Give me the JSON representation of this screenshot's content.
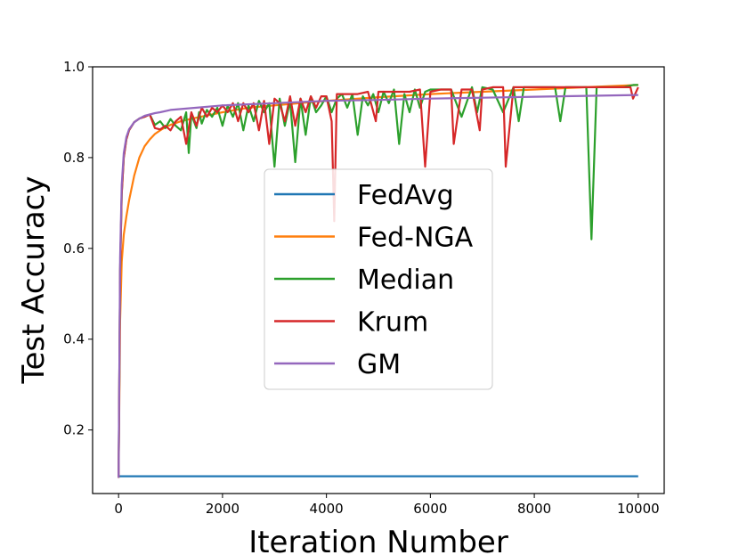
{
  "chart_data": {
    "type": "line",
    "title": "",
    "xlabel": "Iteration Number",
    "ylabel": "Test Accuracy",
    "xlim": [
      -500,
      10500
    ],
    "ylim": [
      0.06,
      1.0
    ],
    "xticks": [
      0,
      2000,
      4000,
      6000,
      8000,
      10000
    ],
    "yticks": [
      0.2,
      0.4,
      0.6,
      0.8,
      1.0
    ],
    "xtick_labels": [
      "0",
      "2000",
      "4000",
      "6000",
      "8000",
      "10000"
    ],
    "ytick_labels": [
      "0.2",
      "0.4",
      "0.6",
      "0.8",
      "1.0"
    ],
    "grid": false,
    "legend_position": "center",
    "series": [
      {
        "name": "FedAvg",
        "color": "#1f77b4",
        "x": [
          0,
          2000,
          4000,
          6000,
          8000,
          10000
        ],
        "y": [
          0.098,
          0.098,
          0.098,
          0.098,
          0.098,
          0.098
        ]
      },
      {
        "name": "Fed-NGA",
        "color": "#ff7f0e",
        "x": [
          0,
          30,
          60,
          100,
          150,
          200,
          300,
          400,
          500,
          600,
          700,
          800,
          900,
          1000,
          1200,
          1500,
          2000,
          2500,
          3000,
          4000,
          5000,
          6000,
          7000,
          8000,
          9000,
          10000
        ],
        "y": [
          0.095,
          0.44,
          0.57,
          0.63,
          0.67,
          0.705,
          0.76,
          0.8,
          0.825,
          0.84,
          0.852,
          0.86,
          0.867,
          0.872,
          0.88,
          0.888,
          0.9,
          0.91,
          0.915,
          0.925,
          0.933,
          0.94,
          0.945,
          0.95,
          0.955,
          0.96
        ]
      },
      {
        "name": "Median",
        "color": "#2ca02c",
        "x": [
          0,
          30,
          60,
          100,
          150,
          200,
          300,
          400,
          500,
          600,
          700,
          800,
          900,
          1000,
          1100,
          1200,
          1300,
          1350,
          1400,
          1500,
          1550,
          1600,
          1700,
          1800,
          1900,
          2000,
          2100,
          2200,
          2300,
          2400,
          2500,
          2600,
          2700,
          2800,
          2900,
          3000,
          3100,
          3200,
          3300,
          3400,
          3500,
          3600,
          3700,
          3800,
          3900,
          4000,
          4100,
          4200,
          4300,
          4400,
          4500,
          4600,
          4700,
          4800,
          4900,
          5000,
          5100,
          5200,
          5300,
          5400,
          5500,
          5600,
          5700,
          5800,
          5900,
          6000,
          6200,
          6400,
          6600,
          6800,
          6900,
          7000,
          7200,
          7400,
          7600,
          7700,
          7800,
          8000,
          8200,
          8400,
          8500,
          8600,
          8800,
          9000,
          9100,
          9200,
          9300,
          9500,
          9700,
          9900,
          10000
        ],
        "y": [
          0.095,
          0.55,
          0.72,
          0.8,
          0.84,
          0.86,
          0.878,
          0.886,
          0.89,
          0.895,
          0.872,
          0.88,
          0.865,
          0.885,
          0.87,
          0.86,
          0.9,
          0.81,
          0.895,
          0.865,
          0.9,
          0.875,
          0.905,
          0.89,
          0.91,
          0.87,
          0.915,
          0.89,
          0.92,
          0.86,
          0.915,
          0.88,
          0.925,
          0.9,
          0.92,
          0.78,
          0.93,
          0.87,
          0.925,
          0.79,
          0.93,
          0.85,
          0.935,
          0.9,
          0.915,
          0.935,
          0.9,
          0.93,
          0.94,
          0.91,
          0.94,
          0.85,
          0.935,
          0.915,
          0.94,
          0.9,
          0.945,
          0.92,
          0.95,
          0.83,
          0.94,
          0.9,
          0.95,
          0.91,
          0.945,
          0.95,
          0.95,
          0.95,
          0.89,
          0.955,
          0.9,
          0.955,
          0.95,
          0.9,
          0.955,
          0.88,
          0.955,
          0.955,
          0.955,
          0.955,
          0.88,
          0.955,
          0.955,
          0.955,
          0.62,
          0.955,
          0.955,
          0.955,
          0.955,
          0.96,
          0.96
        ]
      },
      {
        "name": "Krum",
        "color": "#d62728",
        "x": [
          0,
          30,
          60,
          100,
          150,
          200,
          300,
          400,
          500,
          600,
          700,
          800,
          900,
          1000,
          1100,
          1200,
          1300,
          1400,
          1500,
          1600,
          1700,
          1800,
          1900,
          2000,
          2100,
          2200,
          2300,
          2400,
          2500,
          2600,
          2700,
          2800,
          2900,
          3000,
          3100,
          3200,
          3300,
          3400,
          3500,
          3600,
          3700,
          3800,
          3900,
          4000,
          4100,
          4150,
          4200,
          4400,
          4600,
          4800,
          4950,
          5000,
          5200,
          5400,
          5600,
          5800,
          5900,
          6000,
          6200,
          6400,
          6450,
          6600,
          6800,
          6950,
          7000,
          7200,
          7400,
          7450,
          7600,
          7800,
          8000,
          8500,
          9000,
          9500,
          9850,
          9900,
          10000
        ],
        "y": [
          0.095,
          0.55,
          0.72,
          0.8,
          0.84,
          0.86,
          0.878,
          0.886,
          0.89,
          0.895,
          0.865,
          0.862,
          0.87,
          0.86,
          0.88,
          0.89,
          0.83,
          0.9,
          0.87,
          0.91,
          0.89,
          0.91,
          0.9,
          0.915,
          0.9,
          0.92,
          0.88,
          0.92,
          0.9,
          0.92,
          0.86,
          0.925,
          0.83,
          0.93,
          0.92,
          0.88,
          0.935,
          0.87,
          0.93,
          0.9,
          0.935,
          0.91,
          0.935,
          0.935,
          0.88,
          0.66,
          0.94,
          0.94,
          0.94,
          0.945,
          0.88,
          0.945,
          0.945,
          0.945,
          0.945,
          0.95,
          0.78,
          0.945,
          0.95,
          0.95,
          0.83,
          0.95,
          0.95,
          0.86,
          0.95,
          0.955,
          0.955,
          0.78,
          0.955,
          0.955,
          0.955,
          0.955,
          0.955,
          0.955,
          0.955,
          0.93,
          0.955
        ]
      },
      {
        "name": "GM",
        "color": "#9467bd",
        "x": [
          0,
          30,
          60,
          100,
          150,
          200,
          300,
          400,
          500,
          600,
          700,
          800,
          1000,
          1500,
          2000,
          3000,
          4000,
          5000,
          6000,
          7000,
          8000,
          9000,
          10000
        ],
        "y": [
          0.095,
          0.58,
          0.74,
          0.81,
          0.845,
          0.862,
          0.878,
          0.886,
          0.892,
          0.895,
          0.898,
          0.9,
          0.905,
          0.91,
          0.915,
          0.92,
          0.925,
          0.927,
          0.93,
          0.932,
          0.934,
          0.936,
          0.938
        ]
      }
    ]
  }
}
